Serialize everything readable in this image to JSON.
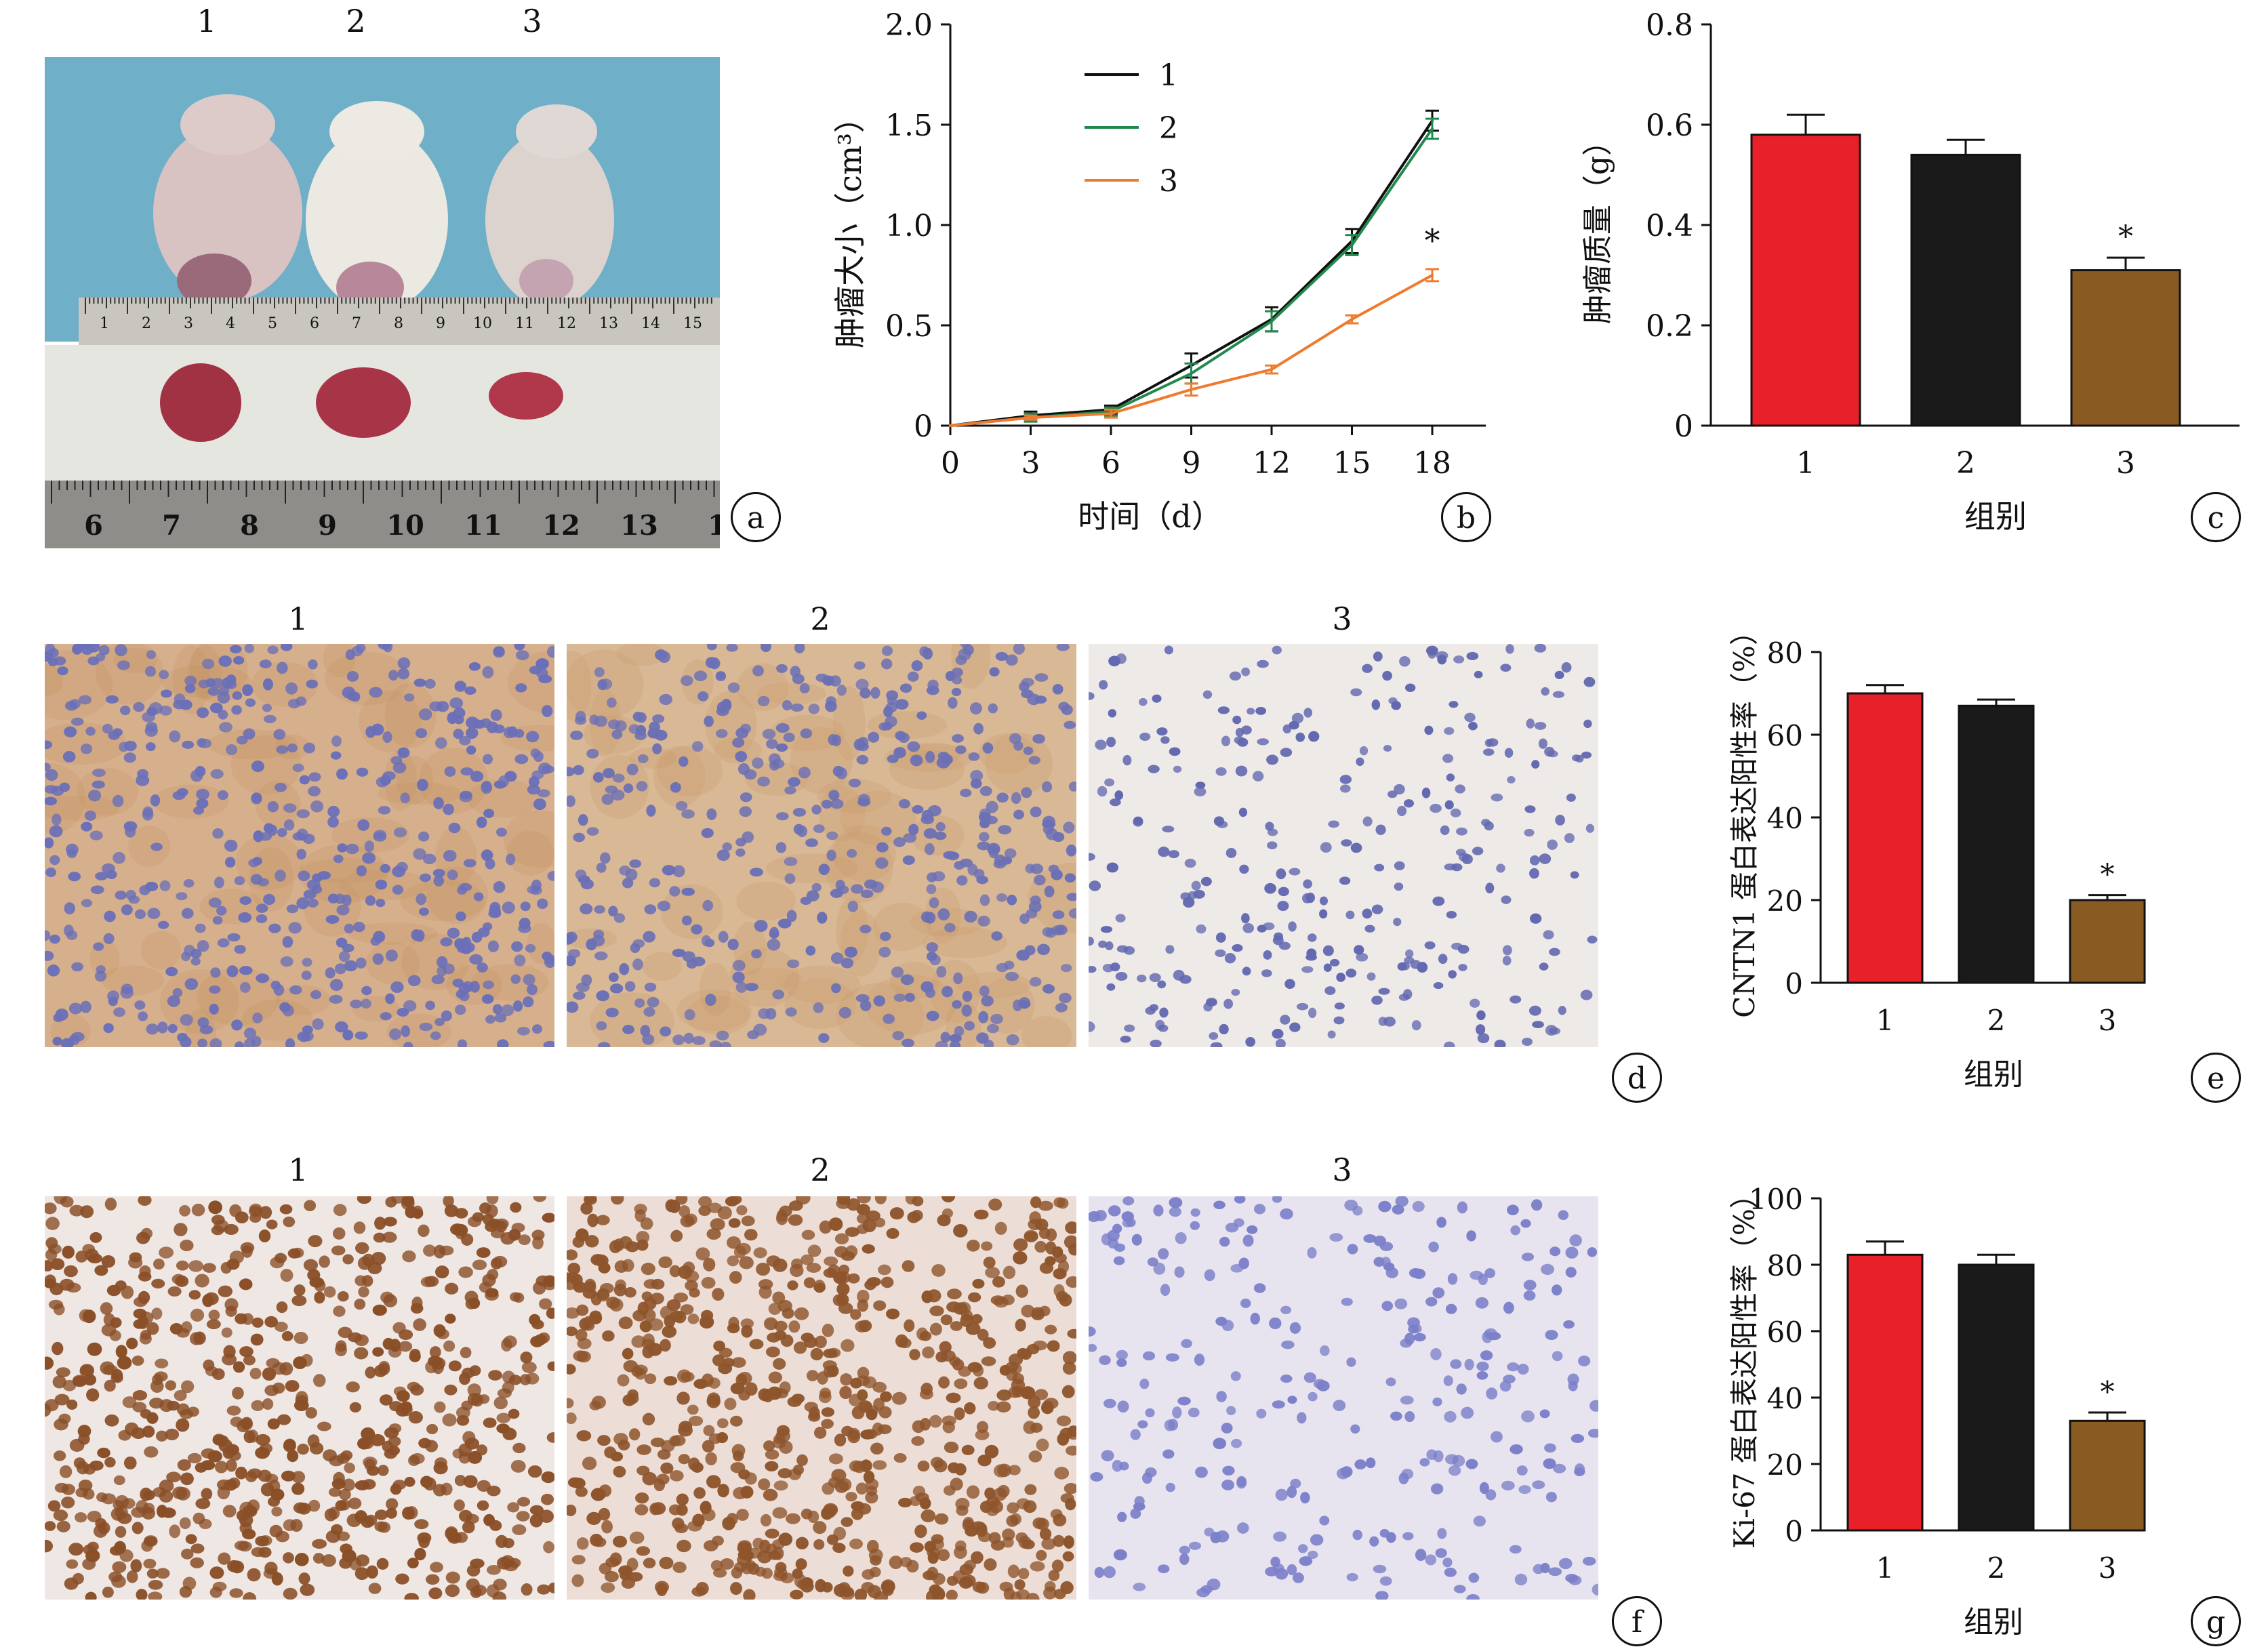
{
  "panel_letters": [
    "a",
    "b",
    "c",
    "d",
    "e",
    "f",
    "g"
  ],
  "group_labels": [
    "1",
    "2",
    "3"
  ],
  "ruler_numbers_top": [
    "1",
    "2",
    "3",
    "4",
    "5",
    "6",
    "7",
    "8",
    "9",
    "10",
    "11",
    "12",
    "13",
    "14",
    "15"
  ],
  "ruler_numbers_bottom": [
    "6",
    "7",
    "8",
    "9",
    "10",
    "11",
    "12",
    "13",
    "1"
  ],
  "colors": {
    "group1": "#e8202a",
    "group2": "#1a1a1a",
    "group3": "#8a5a23",
    "line1": "#111111",
    "line2": "#1f8a4c",
    "line3": "#ee7b2e",
    "photo_bg": "#6fb0c8",
    "ihc_cntn1_bg": "#d9b48f",
    "ihc_ki67_bg": "#efe6e6"
  },
  "chart_data": [
    {
      "id": "b",
      "type": "line",
      "x": [
        0,
        3,
        6,
        9,
        12,
        15,
        18
      ],
      "series": [
        {
          "name": "1",
          "values": [
            0,
            0.05,
            0.08,
            0.3,
            0.53,
            0.92,
            1.52
          ],
          "errors": [
            0,
            0.02,
            0.02,
            0.06,
            0.06,
            0.06,
            0.05
          ]
        },
        {
          "name": "2",
          "values": [
            0,
            0.04,
            0.07,
            0.26,
            0.52,
            0.9,
            1.48
          ],
          "errors": [
            0,
            0.02,
            0.02,
            0.05,
            0.05,
            0.05,
            0.05
          ]
        },
        {
          "name": "3",
          "values": [
            0,
            0.04,
            0.06,
            0.18,
            0.28,
            0.53,
            0.75
          ],
          "errors": [
            0,
            0.01,
            0.02,
            0.03,
            0.02,
            0.02,
            0.03
          ]
        }
      ],
      "ylabel": "肿瘤大小（cm³）",
      "xlabel": "时间（d）",
      "yticks": [
        "0",
        "0.5",
        "1.0",
        "1.5",
        "2.0"
      ],
      "xticks": [
        "0",
        "3",
        "6",
        "9",
        "12",
        "15",
        "18"
      ],
      "ylim": [
        0,
        2.0
      ],
      "xlim": [
        0,
        20
      ],
      "legend": "top-left",
      "annotation": "*"
    },
    {
      "id": "c",
      "type": "bar",
      "categories": [
        "1",
        "2",
        "3"
      ],
      "values": [
        0.58,
        0.54,
        0.31
      ],
      "errors": [
        0.04,
        0.03,
        0.025
      ],
      "ylabel": "肿瘤质量（g）",
      "xlabel": "组别",
      "yticks": [
        "0",
        "0.2",
        "0.4",
        "0.6",
        "0.8"
      ],
      "ylim": [
        0,
        0.8
      ],
      "annotation": "*"
    },
    {
      "id": "e",
      "type": "bar",
      "categories": [
        "1",
        "2",
        "3"
      ],
      "values": [
        70,
        67,
        20
      ],
      "errors": [
        2,
        1.5,
        1.2
      ],
      "ylabel": "CNTN1 蛋白表达阳性率（%）",
      "xlabel": "组别",
      "yticks": [
        "0",
        "20",
        "40",
        "60",
        "80"
      ],
      "ylim": [
        0,
        80
      ],
      "annotation": "*"
    },
    {
      "id": "g",
      "type": "bar",
      "categories": [
        "1",
        "2",
        "3"
      ],
      "values": [
        83,
        80,
        33
      ],
      "errors": [
        4,
        3,
        2.5
      ],
      "ylabel": "Ki-67 蛋白表达阳性率（%）",
      "xlabel": "组别",
      "yticks": [
        "0",
        "20",
        "40",
        "60",
        "80",
        "100"
      ],
      "ylim": [
        0,
        100
      ],
      "annotation": "*"
    }
  ]
}
